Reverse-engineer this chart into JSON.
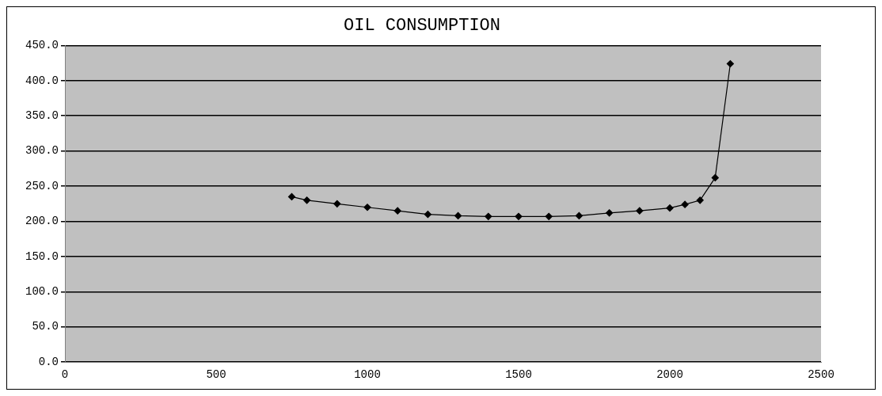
{
  "chart_data": {
    "type": "line",
    "title": "OIL CONSUMPTION",
    "x": [
      750,
      800,
      900,
      1000,
      1100,
      1200,
      1300,
      1400,
      1500,
      1600,
      1700,
      1800,
      1900,
      2000,
      2050,
      2100,
      2150,
      2200
    ],
    "series": [
      {
        "color": "#000000",
        "values": [
          235,
          230,
          225,
          220,
          215,
          210,
          208,
          207,
          207,
          207,
          208,
          212,
          215,
          219,
          224,
          230,
          262,
          424
        ]
      }
    ],
    "xlim": [
      0,
      2500
    ],
    "xticks": [
      0,
      500,
      1000,
      1500,
      2000,
      2500
    ],
    "ylim": [
      0,
      450
    ],
    "yticks": [
      {
        "value": 0,
        "label": "0.0"
      },
      {
        "value": 50,
        "label": "50.0"
      },
      {
        "value": 100,
        "label": "100.0"
      },
      {
        "value": 150,
        "label": "150.0"
      },
      {
        "value": 200,
        "label": "200.0"
      },
      {
        "value": 250,
        "label": "250.0"
      },
      {
        "value": 300,
        "label": "300.0"
      },
      {
        "value": 350,
        "label": "350.0"
      },
      {
        "value": 400,
        "label": "400.0"
      },
      {
        "value": 450,
        "label": "450.0"
      }
    ],
    "grid": "y",
    "legend": false,
    "marker": "diamond",
    "line_style": "solid"
  }
}
